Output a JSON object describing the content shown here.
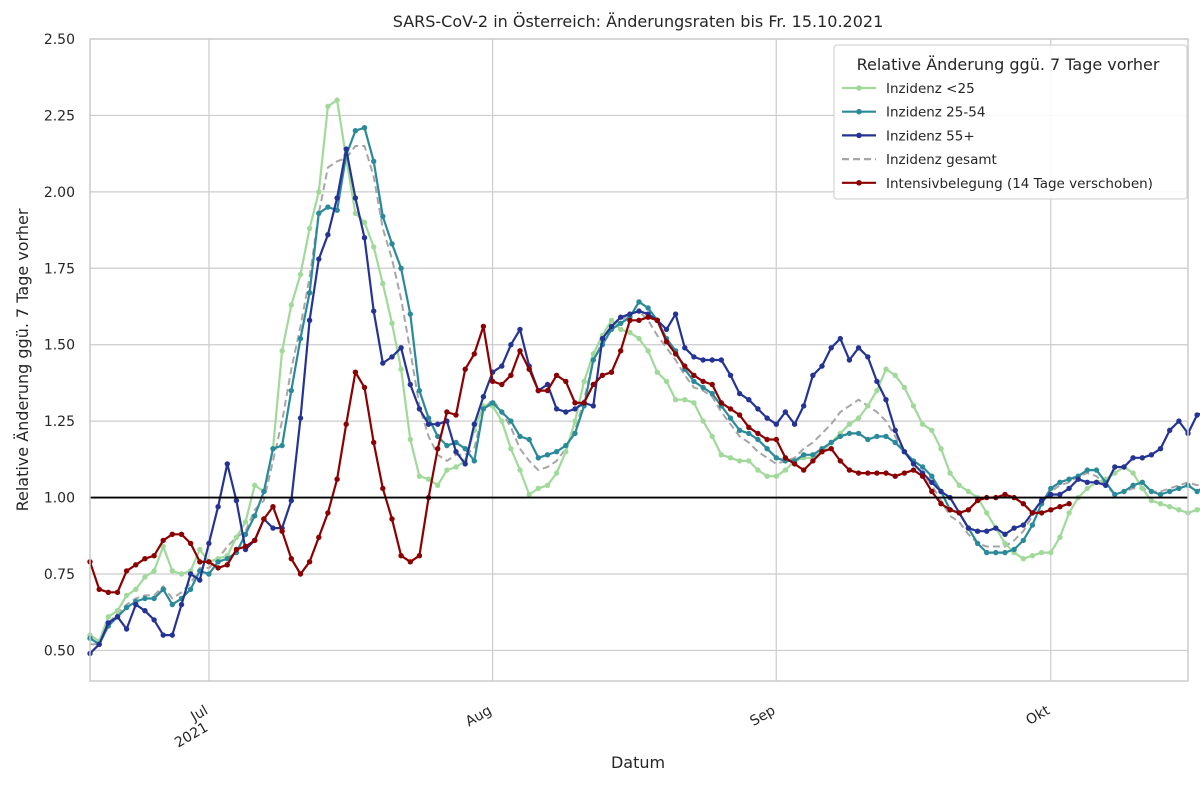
{
  "chart_data": {
    "type": "line",
    "title": "SARS-CoV-2 in Österreich: Änderungsraten bis Fr. 15.10.2021",
    "xlabel": "Datum",
    "ylabel": "Relative Änderung ggü. 7 Tage vorher",
    "xlim": [
      "2021-06-18",
      "2021-10-16"
    ],
    "ylim": [
      0.4,
      2.5
    ],
    "grid": true,
    "reference_line": 1.0,
    "x_ticks": [
      {
        "date": "2021-07-01",
        "label": "Jul",
        "sublabel": "2021"
      },
      {
        "date": "2021-08-01",
        "label": "Aug",
        "sublabel": ""
      },
      {
        "date": "2021-09-01",
        "label": "Sep",
        "sublabel": ""
      },
      {
        "date": "2021-10-01",
        "label": "Okt",
        "sublabel": ""
      }
    ],
    "y_ticks": [
      "0.50",
      "0.75",
      "1.00",
      "1.25",
      "1.50",
      "1.75",
      "2.00",
      "2.25",
      "2.50"
    ],
    "legend": {
      "title": "Relative Änderung ggü. 7 Tage vorher",
      "position": "top-right"
    },
    "series": [
      {
        "name": "Inzidenz <25",
        "color": "#a1d99b",
        "style": "solid-markers",
        "start": "2021-06-18",
        "values": [
          0.55,
          0.53,
          0.61,
          0.63,
          0.68,
          0.7,
          0.74,
          0.76,
          0.84,
          0.76,
          0.75,
          0.76,
          0.83,
          0.79,
          0.8,
          0.81,
          0.87,
          0.92,
          1.04,
          1.02,
          1.16,
          1.48,
          1.63,
          1.73,
          1.88,
          2.0,
          2.28,
          2.3,
          2.11,
          1.93,
          1.9,
          1.82,
          1.7,
          1.57,
          1.42,
          1.19,
          1.07,
          1.06,
          1.04,
          1.09,
          1.1,
          1.12,
          1.22,
          1.3,
          1.3,
          1.25,
          1.16,
          1.09,
          1.01,
          1.03,
          1.04,
          1.08,
          1.15,
          1.25,
          1.38,
          1.47,
          1.53,
          1.58,
          1.55,
          1.54,
          1.52,
          1.48,
          1.41,
          1.38,
          1.32,
          1.32,
          1.31,
          1.25,
          1.2,
          1.14,
          1.13,
          1.12,
          1.12,
          1.09,
          1.07,
          1.07,
          1.09,
          1.12,
          1.13,
          1.13,
          1.15,
          1.18,
          1.21,
          1.24,
          1.26,
          1.3,
          1.35,
          1.42,
          1.4,
          1.36,
          1.3,
          1.24,
          1.22,
          1.16,
          1.08,
          1.04,
          1.02,
          1.0,
          0.95,
          0.9,
          0.85,
          0.82,
          0.8,
          0.81,
          0.82,
          0.82,
          0.87,
          0.95,
          1.0,
          1.03,
          1.05,
          1.06,
          1.08,
          1.1,
          1.08,
          1.03,
          0.99,
          0.98,
          0.97,
          0.96,
          0.95,
          0.96,
          0.97,
          0.94,
          0.96,
          1.0,
          1.04
        ]
      },
      {
        "name": "Inzidenz 25-54",
        "color": "#2a8a9a",
        "style": "solid-markers",
        "start": "2021-06-18",
        "values": [
          0.54,
          0.52,
          0.58,
          0.61,
          0.64,
          0.66,
          0.67,
          0.67,
          0.7,
          0.65,
          0.67,
          0.7,
          0.76,
          0.75,
          0.79,
          0.8,
          0.82,
          0.88,
          0.94,
          1.02,
          1.16,
          1.17,
          1.35,
          1.52,
          1.67,
          1.93,
          1.95,
          1.94,
          2.12,
          2.2,
          2.21,
          2.1,
          1.92,
          1.83,
          1.75,
          1.6,
          1.35,
          1.26,
          1.2,
          1.17,
          1.18,
          1.16,
          1.12,
          1.29,
          1.31,
          1.28,
          1.25,
          1.2,
          1.19,
          1.13,
          1.14,
          1.15,
          1.17,
          1.21,
          1.3,
          1.45,
          1.5,
          1.55,
          1.57,
          1.59,
          1.64,
          1.62,
          1.58,
          1.52,
          1.48,
          1.42,
          1.38,
          1.36,
          1.34,
          1.3,
          1.26,
          1.22,
          1.21,
          1.19,
          1.16,
          1.13,
          1.12,
          1.12,
          1.14,
          1.14,
          1.16,
          1.18,
          1.2,
          1.21,
          1.21,
          1.19,
          1.2,
          1.2,
          1.18,
          1.15,
          1.12,
          1.1,
          1.07,
          1.02,
          0.96,
          0.95,
          0.9,
          0.85,
          0.82,
          0.82,
          0.82,
          0.83,
          0.86,
          0.91,
          0.98,
          1.03,
          1.05,
          1.06,
          1.07,
          1.09,
          1.09,
          1.05,
          1.01,
          1.02,
          1.04,
          1.05,
          1.02,
          1.01,
          1.02,
          1.03,
          1.04,
          1.02,
          1.04,
          1.09
        ]
      },
      {
        "name": "Inzidenz 55+",
        "color": "#253494",
        "style": "solid-markers",
        "start": "2021-06-18",
        "values": [
          0.49,
          0.52,
          0.59,
          0.61,
          0.57,
          0.65,
          0.63,
          0.6,
          0.55,
          0.55,
          0.65,
          0.75,
          0.73,
          0.85,
          0.97,
          1.11,
          0.99,
          0.83,
          0.86,
          0.93,
          0.9,
          0.9,
          0.99,
          1.26,
          1.58,
          1.78,
          1.86,
          1.98,
          2.14,
          1.98,
          1.85,
          1.61,
          1.44,
          1.46,
          1.49,
          1.37,
          1.29,
          1.24,
          1.24,
          1.25,
          1.15,
          1.11,
          1.24,
          1.33,
          1.41,
          1.43,
          1.5,
          1.55,
          1.43,
          1.35,
          1.37,
          1.29,
          1.28,
          1.29,
          1.31,
          1.3,
          1.52,
          1.56,
          1.59,
          1.6,
          1.61,
          1.6,
          1.58,
          1.55,
          1.6,
          1.49,
          1.46,
          1.45,
          1.45,
          1.45,
          1.4,
          1.34,
          1.32,
          1.29,
          1.26,
          1.24,
          1.28,
          1.24,
          1.3,
          1.4,
          1.43,
          1.49,
          1.52,
          1.45,
          1.49,
          1.46,
          1.38,
          1.32,
          1.22,
          1.15,
          1.11,
          1.08,
          1.05,
          1.02,
          1.0,
          0.95,
          0.9,
          0.89,
          0.89,
          0.9,
          0.88,
          0.9,
          0.91,
          0.95,
          0.99,
          1.01,
          1.01,
          1.03,
          1.06,
          1.05,
          1.05,
          1.04,
          1.1,
          1.1,
          1.13,
          1.13,
          1.14,
          1.16,
          1.22,
          1.25,
          1.21,
          1.27,
          1.28
        ]
      },
      {
        "name": "Inzidenz gesamt",
        "color": "#a6a6a6",
        "style": "dashed",
        "start": "2021-06-18",
        "values": [
          0.52,
          0.52,
          0.59,
          0.62,
          0.65,
          0.67,
          0.68,
          0.68,
          0.71,
          0.67,
          0.69,
          0.72,
          0.77,
          0.77,
          0.8,
          0.84,
          0.87,
          0.89,
          0.96,
          0.99,
          1.12,
          1.25,
          1.42,
          1.56,
          1.72,
          1.93,
          2.08,
          2.1,
          2.11,
          2.15,
          2.15,
          2.05,
          1.88,
          1.78,
          1.65,
          1.48,
          1.3,
          1.2,
          1.14,
          1.12,
          1.14,
          1.14,
          1.16,
          1.29,
          1.32,
          1.28,
          1.23,
          1.16,
          1.12,
          1.09,
          1.1,
          1.12,
          1.16,
          1.22,
          1.32,
          1.45,
          1.51,
          1.56,
          1.58,
          1.6,
          1.61,
          1.58,
          1.53,
          1.49,
          1.45,
          1.4,
          1.36,
          1.35,
          1.33,
          1.28,
          1.24,
          1.2,
          1.18,
          1.15,
          1.13,
          1.11,
          1.12,
          1.13,
          1.16,
          1.18,
          1.21,
          1.24,
          1.28,
          1.3,
          1.32,
          1.3,
          1.28,
          1.25,
          1.2,
          1.15,
          1.11,
          1.08,
          1.04,
          0.99,
          0.94,
          0.92,
          0.88,
          0.85,
          0.84,
          0.84,
          0.84,
          0.86,
          0.89,
          0.94,
          0.99,
          1.02,
          1.04,
          1.05,
          1.07,
          1.08,
          1.07,
          1.04,
          1.01,
          1.02,
          1.03,
          1.03,
          1.02,
          1.02,
          1.03,
          1.04,
          1.05,
          1.04,
          1.06,
          1.1
        ]
      },
      {
        "name": "Intensivbelegung (14 Tage verschoben)",
        "color": "#8b0000",
        "style": "solid-markers",
        "start": "2021-06-18",
        "values": [
          0.79,
          0.7,
          0.69,
          0.69,
          0.76,
          0.78,
          0.8,
          0.81,
          0.86,
          0.88,
          0.88,
          0.85,
          0.79,
          0.79,
          0.77,
          0.78,
          0.83,
          0.84,
          0.86,
          0.93,
          0.97,
          0.89,
          0.8,
          0.75,
          0.79,
          0.87,
          0.95,
          1.06,
          1.24,
          1.41,
          1.36,
          1.18,
          1.03,
          0.93,
          0.81,
          0.79,
          0.81,
          1.0,
          1.16,
          1.28,
          1.27,
          1.42,
          1.47,
          1.56,
          1.38,
          1.37,
          1.4,
          1.48,
          1.42,
          1.35,
          1.35,
          1.4,
          1.38,
          1.31,
          1.31,
          1.37,
          1.4,
          1.41,
          1.48,
          1.58,
          1.58,
          1.59,
          1.58,
          1.51,
          1.47,
          1.43,
          1.4,
          1.38,
          1.37,
          1.31,
          1.29,
          1.27,
          1.23,
          1.21,
          1.19,
          1.19,
          1.13,
          1.11,
          1.09,
          1.12,
          1.15,
          1.16,
          1.12,
          1.09,
          1.08,
          1.08,
          1.08,
          1.08,
          1.07,
          1.08,
          1.09,
          1.07,
          1.02,
          0.98,
          0.96,
          0.95,
          0.96,
          0.99,
          1.0,
          1.0,
          1.01,
          1.0,
          0.98,
          0.95,
          0.95,
          0.96,
          0.97,
          0.98
        ]
      }
    ]
  }
}
